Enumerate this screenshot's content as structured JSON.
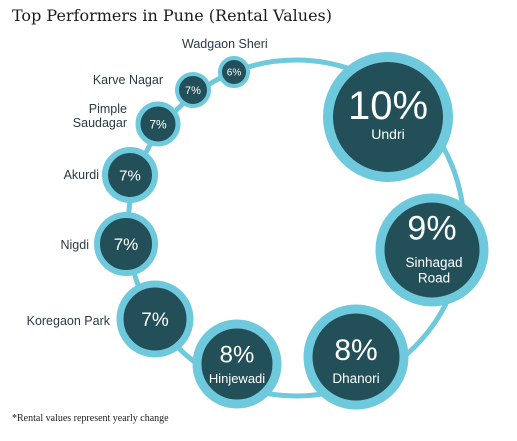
{
  "title": "Top Performers in Pune (Rental Values)",
  "footnote": "*Rental values represent yearly change",
  "colors": {
    "ring": "#6ec9dc",
    "fill": "#235058",
    "text": "#ffffff",
    "label": "#2a3a45"
  },
  "chart_data": {
    "type": "bubble",
    "title": "Top Performers in Pune (Rental Values)",
    "unit": "%",
    "points": [
      {
        "name": "Undri",
        "value": 10,
        "value_label": "10%",
        "label_lines": [
          "Undri"
        ]
      },
      {
        "name": "Sinhagad Road",
        "value": 9,
        "value_label": "9%",
        "label_lines": [
          "Sinhagad",
          "Road"
        ]
      },
      {
        "name": "Dhanori",
        "value": 8,
        "value_label": "8%",
        "label_lines": [
          "Dhanori"
        ]
      },
      {
        "name": "Hinjewadi",
        "value": 8,
        "value_label": "8%",
        "label_lines": [
          "Hinjewadi"
        ]
      },
      {
        "name": "Koregaon Park",
        "value": 7,
        "value_label": "7%",
        "label_lines": [
          "Koregaon Park"
        ]
      },
      {
        "name": "Nigdi",
        "value": 7,
        "value_label": "7%",
        "label_lines": [
          "Nigdi"
        ]
      },
      {
        "name": "Akurdi",
        "value": 7,
        "value_label": "7%",
        "label_lines": [
          "Akurdi"
        ]
      },
      {
        "name": "Pimple Saudagar",
        "value": 7,
        "value_label": "7%",
        "label_lines": [
          "Pimple",
          "Saudagar"
        ]
      },
      {
        "name": "Karve Nagar",
        "value": 7,
        "value_label": "7%",
        "label_lines": [
          "Karve Nagar"
        ]
      },
      {
        "name": "Wadgaon Sheri",
        "value": 6,
        "value_label": "6%",
        "label_lines": [
          "Wadgaon Sheri"
        ]
      }
    ]
  }
}
